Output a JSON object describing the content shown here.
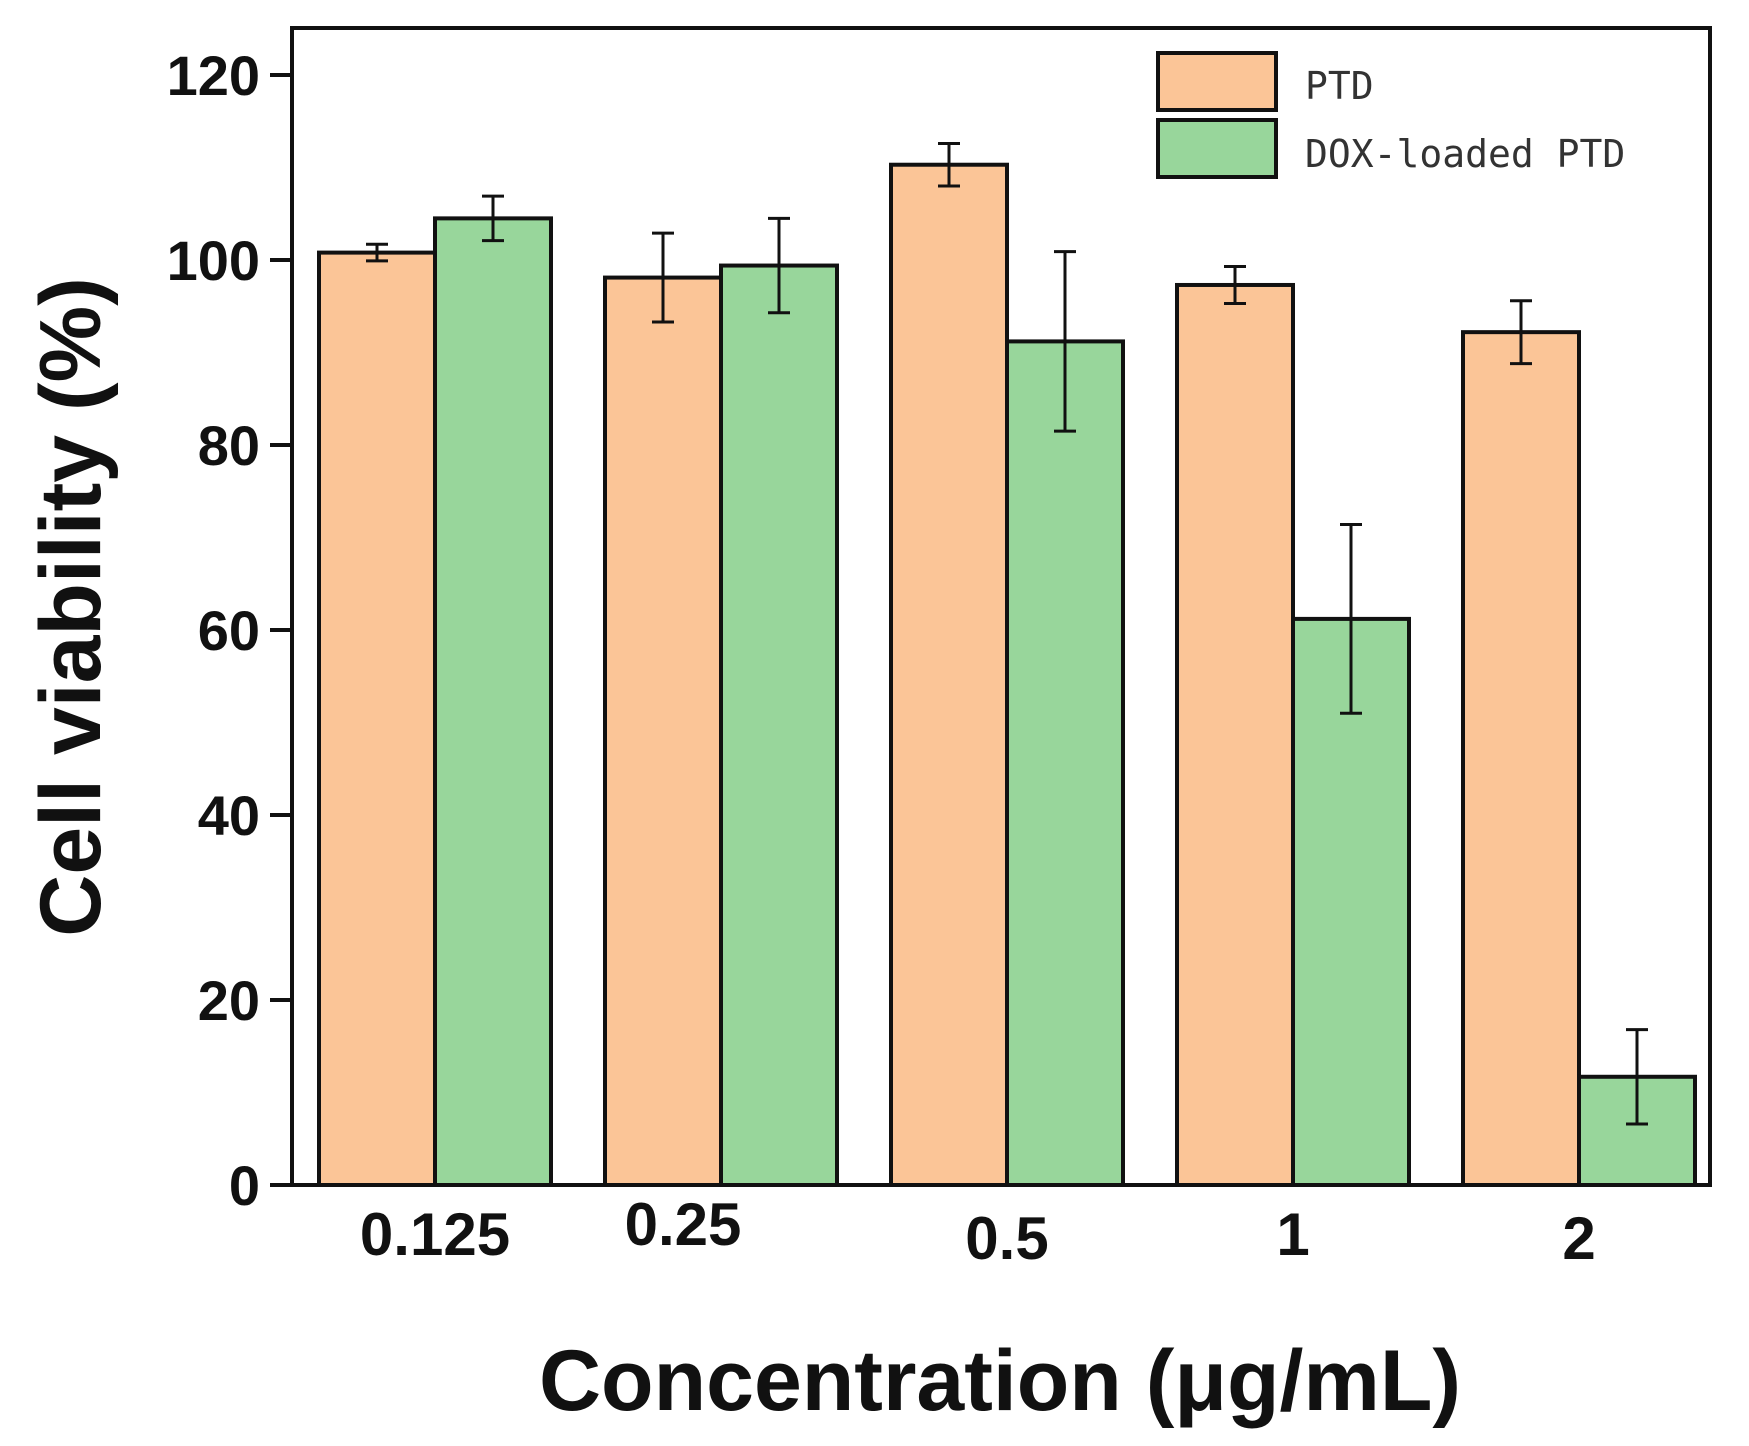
{
  "chart_data": {
    "type": "bar",
    "title": "",
    "xlabel": "Concentration (μg/mL)",
    "ylabel": "Cell viability (%)",
    "ylim": [
      0,
      125
    ],
    "yticks": [
      0,
      20,
      40,
      60,
      80,
      100,
      120
    ],
    "categories": [
      "0.125",
      "0.25",
      "0.5",
      "1",
      "2"
    ],
    "series": [
      {
        "name": "PTD",
        "color": "#fbc597",
        "values": [
          100.8,
          98.1,
          110.3,
          97.3,
          92.2
        ],
        "errors": [
          0.9,
          4.8,
          2.3,
          2.0,
          3.4
        ]
      },
      {
        "name": "DOX-loaded PTD",
        "color": "#98d69b",
        "values": [
          104.5,
          99.4,
          91.2,
          61.2,
          11.7
        ],
        "errors": [
          2.4,
          5.1,
          9.7,
          10.2,
          5.1
        ]
      }
    ],
    "legend": "top-right",
    "grid": false
  }
}
